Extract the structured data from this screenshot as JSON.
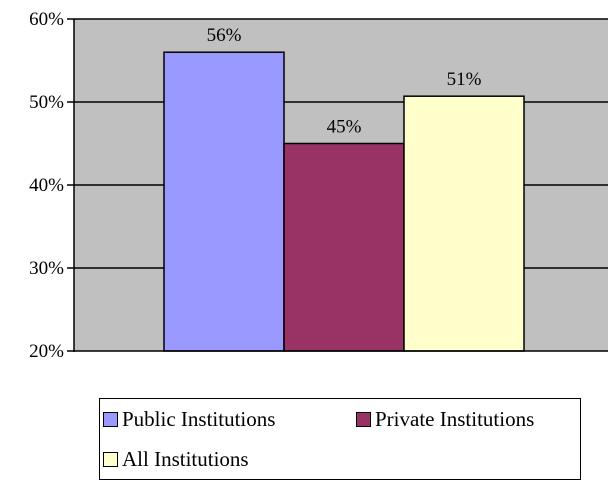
{
  "chart_data": {
    "type": "bar",
    "categories": [
      "Public Institutions",
      "Private Institutions",
      "All Institutions"
    ],
    "values": [
      56,
      45,
      50.7
    ],
    "data_labels": [
      "56%",
      "45%",
      "51%"
    ],
    "colors": [
      "#9999ff",
      "#993366",
      "#ffffcc"
    ],
    "ylim": [
      20,
      60
    ],
    "yticks": [
      20,
      30,
      40,
      50,
      60
    ],
    "ytick_labels": [
      "20%",
      "30%",
      "40%",
      "50%",
      "60%"
    ],
    "plot_background": "#c0c0c0",
    "grid": true,
    "legend_position": "bottom"
  },
  "legend": {
    "items": [
      {
        "label": "Public Institutions",
        "color": "#9999ff"
      },
      {
        "label": "Private Institutions",
        "color": "#993366"
      },
      {
        "label": "All Institutions",
        "color": "#ffffcc"
      }
    ]
  }
}
